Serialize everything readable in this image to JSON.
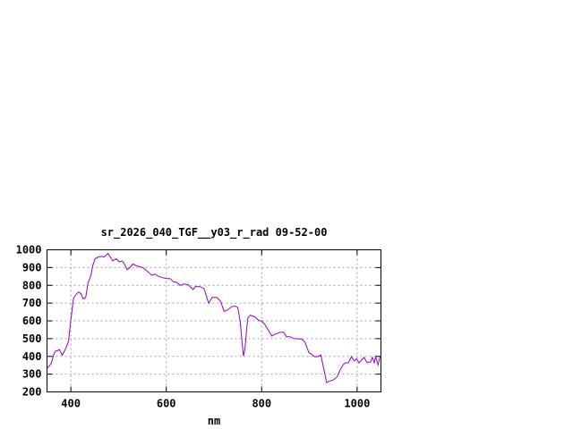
{
  "chart_data": {
    "type": "line",
    "title": "sr_2026_040_TGF__y03_r_rad 09-52-00",
    "xlabel": "nm",
    "ylabel": "",
    "xlim": [
      350,
      1050
    ],
    "ylim": [
      200,
      1000
    ],
    "xticks": [
      400,
      600,
      800,
      1000
    ],
    "yticks": [
      200,
      300,
      400,
      500,
      600,
      700,
      800,
      900,
      1000
    ],
    "grid": true,
    "line_color": "#9400d3",
    "series": [
      {
        "x": [
          350,
          354,
          359,
          364,
          368,
          371,
          376,
          382,
          390,
          395,
          400,
          404,
          406,
          411,
          416,
          421,
          426,
          431,
          436,
          442,
          446,
          451,
          458,
          464,
          470,
          478,
          482,
          488,
          495,
          501,
          508,
          512,
          518,
          524,
          530,
          538,
          545,
          551,
          560,
          570,
          576,
          584,
          592,
          601,
          608,
          615,
          622,
          629,
          638,
          646,
          656,
          661,
          670,
          679,
          689,
          696,
          706,
          714,
          721,
          729,
          738,
          745,
          750,
          755,
          759,
          762,
          765,
          769,
          771,
          776,
          786,
          794,
          800,
          806,
          814,
          821,
          828,
          839,
          846,
          852,
          859,
          867,
          876,
          884,
          891,
          899,
          904,
          911,
          918,
          924,
          930,
          936,
          941,
          950,
          958,
          965,
          971,
          976,
          982,
          988,
          994,
          999,
          1004,
          1010,
          1015,
          1020,
          1028,
          1032,
          1036,
          1039,
          1044,
          1048,
          1050
        ],
        "y": [
          332,
          344,
          361,
          411,
          431,
          431,
          438,
          407,
          448,
          486,
          603,
          695,
          729,
          749,
          762,
          754,
          724,
          732,
          813,
          854,
          913,
          950,
          960,
          963,
          960,
          980,
          963,
          937,
          950,
          933,
          937,
          921,
          888,
          900,
          920,
          910,
          904,
          900,
          880,
          856,
          863,
          850,
          843,
          838,
          838,
          820,
          817,
          800,
          808,
          803,
          776,
          793,
          793,
          783,
          699,
          732,
          732,
          709,
          654,
          662,
          682,
          682,
          675,
          595,
          478,
          402,
          444,
          570,
          615,
          632,
          622,
          602,
          599,
          582,
          548,
          515,
          525,
          536,
          536,
          511,
          511,
          501,
          498,
          498,
          478,
          421,
          414,
          398,
          398,
          408,
          331,
          252,
          260,
          267,
          285,
          327,
          354,
          364,
          364,
          398,
          374,
          386,
          364,
          381,
          394,
          367,
          367,
          394,
          364,
          398,
          352,
          398,
          398
        ]
      }
    ]
  }
}
